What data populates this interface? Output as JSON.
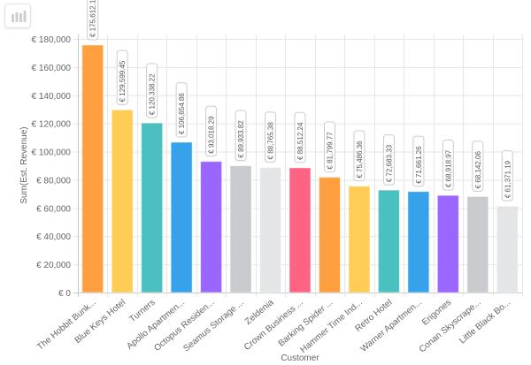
{
  "toolbar": {
    "chart_type_icon": "bar-chart-icon"
  },
  "chart_data": {
    "type": "bar",
    "xlabel": "Customer",
    "ylabel": "Sum(Est. Revenue)",
    "ylim": [
      0,
      180000
    ],
    "yticks": [
      0,
      20000,
      40000,
      60000,
      80000,
      100000,
      120000,
      140000,
      160000,
      180000
    ],
    "ytick_labels": [
      "€ 0",
      "€ 20,000",
      "€ 40,000",
      "€ 60,000",
      "€ 80,000",
      "€ 100,000",
      "€ 120,000",
      "€ 140,000",
      "€ 160,000",
      "€ 180,000"
    ],
    "grid": true,
    "categories": [
      "The Hobbit Bunk...",
      "Blue Keys Hotel",
      "Turners",
      "Apollo Apartmen...",
      "Octopus Residen...",
      "Seamus Storage ...",
      "Zeldenia",
      "Crown Business ...",
      "Barking Spider ...",
      "Hammer Time Ind...",
      "Retro Hotel",
      "Warner Apartmen...",
      "Erigones",
      "Conan Skyscrape...",
      "Little Black Bo..."
    ],
    "values": [
      175612.19,
      129599.45,
      120338.22,
      106654.86,
      93018.29,
      89933.82,
      88765.38,
      88512.24,
      81799.77,
      75486.36,
      72683.33,
      71661.26,
      68918.97,
      68142.06,
      61371.19
    ],
    "data_labels": [
      "€ 175,612.19",
      "€ 129,599.45",
      "€ 120,338.22",
      "€ 106,654.86",
      "€ 93,018.29",
      "€ 89,933.82",
      "€ 88,765.38",
      "€ 88,512.24",
      "€ 81,799.77",
      "€ 75,486.36",
      "€ 72,683.33",
      "€ 71,661.26",
      "€ 68,918.97",
      "€ 68,142.06",
      "€ 61,371.19"
    ],
    "colors": [
      "#ff9f40",
      "#ffcd56",
      "#4bc0c0",
      "#36a2eb",
      "#9966ff",
      "#c9cbcf",
      "#e4e5e7",
      "#ff6384",
      "#ff9f40",
      "#ffcd56",
      "#4bc0c0",
      "#36a2eb",
      "#9966ff",
      "#c9cbcf",
      "#e4e5e7"
    ]
  }
}
